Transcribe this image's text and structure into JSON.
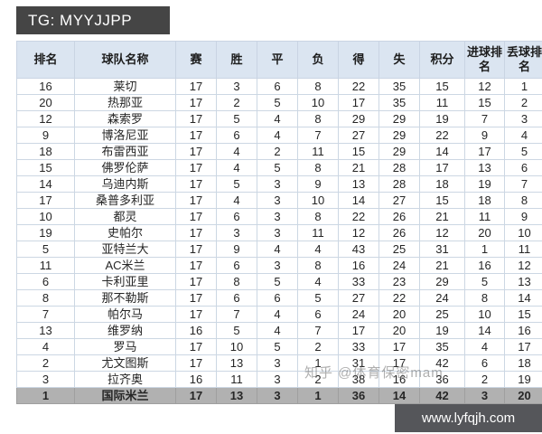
{
  "badge": {
    "text": "TG: MYYJJPP"
  },
  "watermark": {
    "text": "知乎 @体育保密mam"
  },
  "banner": {
    "url_text": "www.lyfqjh.com"
  },
  "colors": {
    "header_bg": "#dbe5f1",
    "grid_border": "#ccd7e3",
    "highlight_row_bg": "#b1b1b1",
    "badge_bg": "#454545",
    "banner_bg": "#55565a"
  },
  "chart_data": {
    "type": "table",
    "columns": [
      "排名",
      "球队名称",
      "赛",
      "胜",
      "平",
      "负",
      "得",
      "失",
      "积分",
      "进球排名",
      "丢球排名"
    ],
    "rows": [
      [
        16,
        "莱切",
        17,
        3,
        6,
        8,
        22,
        35,
        15,
        12,
        1
      ],
      [
        20,
        "热那亚",
        17,
        2,
        5,
        10,
        17,
        35,
        11,
        15,
        2
      ],
      [
        12,
        "森索罗",
        17,
        5,
        4,
        8,
        29,
        29,
        19,
        7,
        3
      ],
      [
        9,
        "博洛尼亚",
        17,
        6,
        4,
        7,
        27,
        29,
        22,
        9,
        4
      ],
      [
        18,
        "布雷西亚",
        17,
        4,
        2,
        11,
        15,
        29,
        14,
        17,
        5
      ],
      [
        15,
        "佛罗伦萨",
        17,
        4,
        5,
        8,
        21,
        28,
        17,
        13,
        6
      ],
      [
        14,
        "乌迪内斯",
        17,
        5,
        3,
        9,
        13,
        28,
        18,
        19,
        7
      ],
      [
        17,
        "桑普多利亚",
        17,
        4,
        3,
        10,
        14,
        27,
        15,
        18,
        8
      ],
      [
        10,
        "都灵",
        17,
        6,
        3,
        8,
        22,
        26,
        21,
        11,
        9
      ],
      [
        19,
        "史帕尔",
        17,
        3,
        3,
        11,
        12,
        26,
        12,
        20,
        10
      ],
      [
        5,
        "亚特兰大",
        17,
        9,
        4,
        4,
        43,
        25,
        31,
        1,
        11
      ],
      [
        11,
        "AC米兰",
        17,
        6,
        3,
        8,
        16,
        24,
        21,
        16,
        12
      ],
      [
        6,
        "卡利亚里",
        17,
        8,
        5,
        4,
        33,
        23,
        29,
        5,
        13
      ],
      [
        8,
        "那不勒斯",
        17,
        6,
        6,
        5,
        27,
        22,
        24,
        8,
        14
      ],
      [
        7,
        "帕尔马",
        17,
        7,
        4,
        6,
        24,
        20,
        25,
        10,
        15
      ],
      [
        13,
        "维罗纳",
        16,
        5,
        4,
        7,
        17,
        20,
        19,
        14,
        16
      ],
      [
        4,
        "罗马",
        17,
        10,
        5,
        2,
        33,
        17,
        35,
        4,
        17
      ],
      [
        2,
        "尤文图斯",
        17,
        13,
        3,
        1,
        31,
        17,
        42,
        6,
        18
      ],
      [
        3,
        "拉齐奥",
        16,
        11,
        3,
        2,
        38,
        16,
        36,
        2,
        19
      ],
      [
        1,
        "国际米兰",
        17,
        13,
        3,
        1,
        36,
        14,
        42,
        3,
        20
      ]
    ],
    "highlighted_row": 19,
    "legend_position": "none",
    "grid": true
  }
}
